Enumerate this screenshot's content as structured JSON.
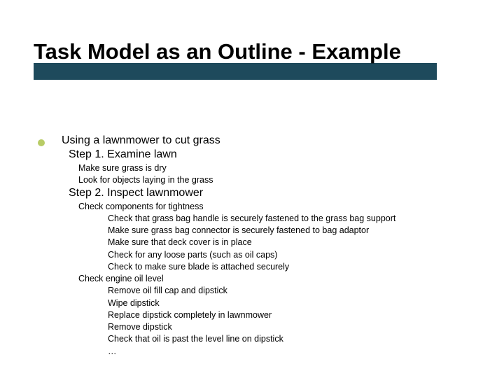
{
  "title": "Task Model as an Outline - Example",
  "colors": {
    "title_bar": "#1e4a5c",
    "bullet": "#b8cc66",
    "background": "#ffffff",
    "text": "#000000"
  },
  "outline": {
    "root": "Using a lawnmower to cut grass",
    "step1": {
      "label": "Step 1. Examine lawn",
      "items": [
        "Make sure grass is dry",
        "Look for objects laying in the grass"
      ]
    },
    "step2": {
      "label": "Step 2. Inspect lawnmower",
      "group1": {
        "label": "Check components for tightness",
        "items": [
          "Check that grass bag handle is securely fastened to the grass bag support",
          "Make sure grass bag connector is securely fastened to bag adaptor",
          "Make sure that deck cover is in place",
          "Check for any loose parts (such as oil caps)",
          "Check to make sure blade is attached securely"
        ]
      },
      "group2": {
        "label": "Check engine oil level",
        "items": [
          "Remove oil fill cap and dipstick",
          "Wipe dipstick",
          "Replace dipstick completely in lawnmower",
          "Remove dipstick",
          "Check that oil is past the level line on dipstick",
          "…"
        ]
      }
    }
  }
}
